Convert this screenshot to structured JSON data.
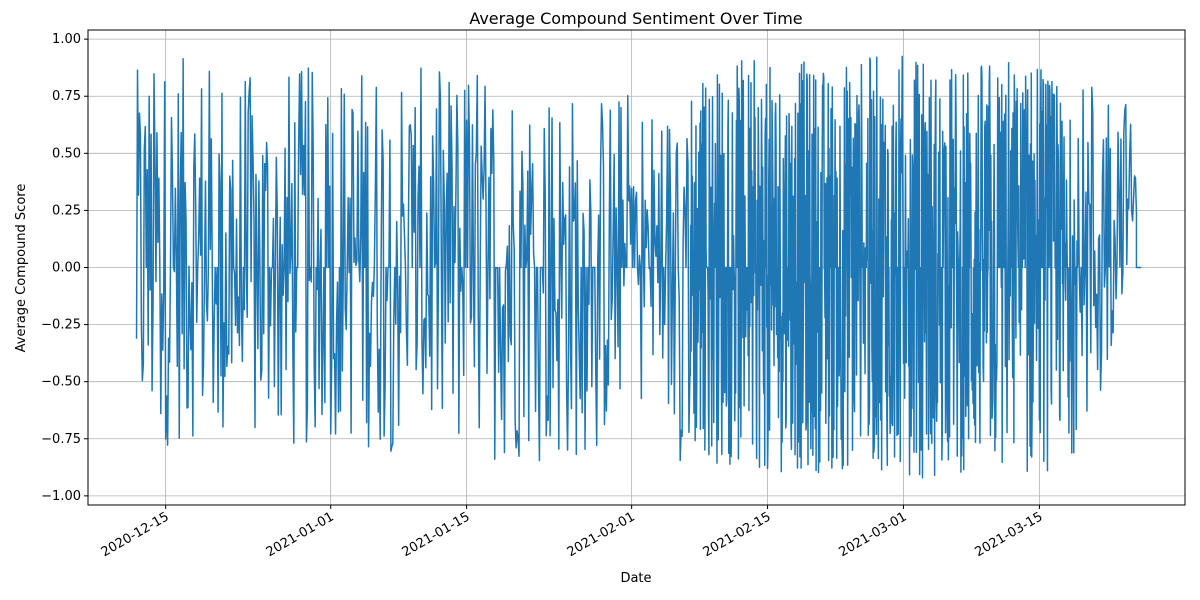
{
  "chart_data": {
    "type": "line",
    "title": "Average Compound Sentiment Over Time",
    "xlabel": "Date",
    "ylabel": "Average Compound Score",
    "xlim": [
      "2020-12-07",
      "2021-03-30"
    ],
    "ylim": [
      -1.04,
      1.04
    ],
    "grid": true,
    "x_ticks": [
      "2020-12-15",
      "2021-01-01",
      "2021-01-15",
      "2021-02-01",
      "2021-02-15",
      "2021-03-01",
      "2021-03-15"
    ],
    "y_ticks": [
      -1.0,
      -0.75,
      -0.5,
      -0.25,
      0.0,
      0.25,
      0.5,
      0.75,
      1.0
    ],
    "y_tick_labels": [
      "−1.00",
      "−0.75",
      "−0.50",
      "−0.25",
      "0.00",
      "0.25",
      "0.50",
      "0.75",
      "1.00"
    ],
    "series": [
      {
        "color": "#1f77b4",
        "x": [
          "2020-12-12",
          "2020-12-15",
          "2020-12-18",
          "2020-12-22",
          "2020-12-25",
          "2020-12-28",
          "2021-01-01",
          "2021-01-04",
          "2021-01-08",
          "2021-01-11",
          "2021-01-15",
          "2021-01-18",
          "2021-01-22",
          "2021-01-25",
          "2021-01-29",
          "2021-02-01",
          "2021-02-03",
          "2021-02-06",
          "2021-02-08",
          "2021-02-11",
          "2021-02-15",
          "2021-02-18",
          "2021-02-22",
          "2021-02-25",
          "2021-03-01",
          "2021-03-04",
          "2021-03-08",
          "2021-03-11",
          "2021-03-15",
          "2021-03-18",
          "2021-03-21",
          "2021-03-24",
          "2021-03-25"
        ],
        "y_max": [
          0.87,
          0.91,
          0.93,
          0.88,
          0.82,
          0.89,
          0.88,
          0.9,
          0.93,
          0.86,
          0.91,
          0.88,
          0.9,
          0.79,
          0.78,
          0.79,
          0.72,
          0.77,
          0.86,
          0.92,
          0.9,
          0.91,
          0.9,
          0.94,
          0.94,
          0.91,
          0.9,
          0.94,
          0.93,
          0.7,
          0.93,
          0.75,
          0.49
        ],
        "y_min": [
          -0.83,
          -0.79,
          -0.75,
          -0.91,
          -0.82,
          -0.86,
          -0.75,
          -0.79,
          -0.82,
          -0.82,
          -0.84,
          -0.86,
          -0.84,
          -0.88,
          -0.79,
          -0.52,
          -0.65,
          -0.85,
          -0.84,
          -0.89,
          -0.91,
          -0.9,
          -0.91,
          -0.88,
          -0.9,
          -0.94,
          -0.89,
          -0.91,
          -0.93,
          -0.83,
          -0.76,
          0.0,
          0.0
        ]
      }
    ]
  }
}
